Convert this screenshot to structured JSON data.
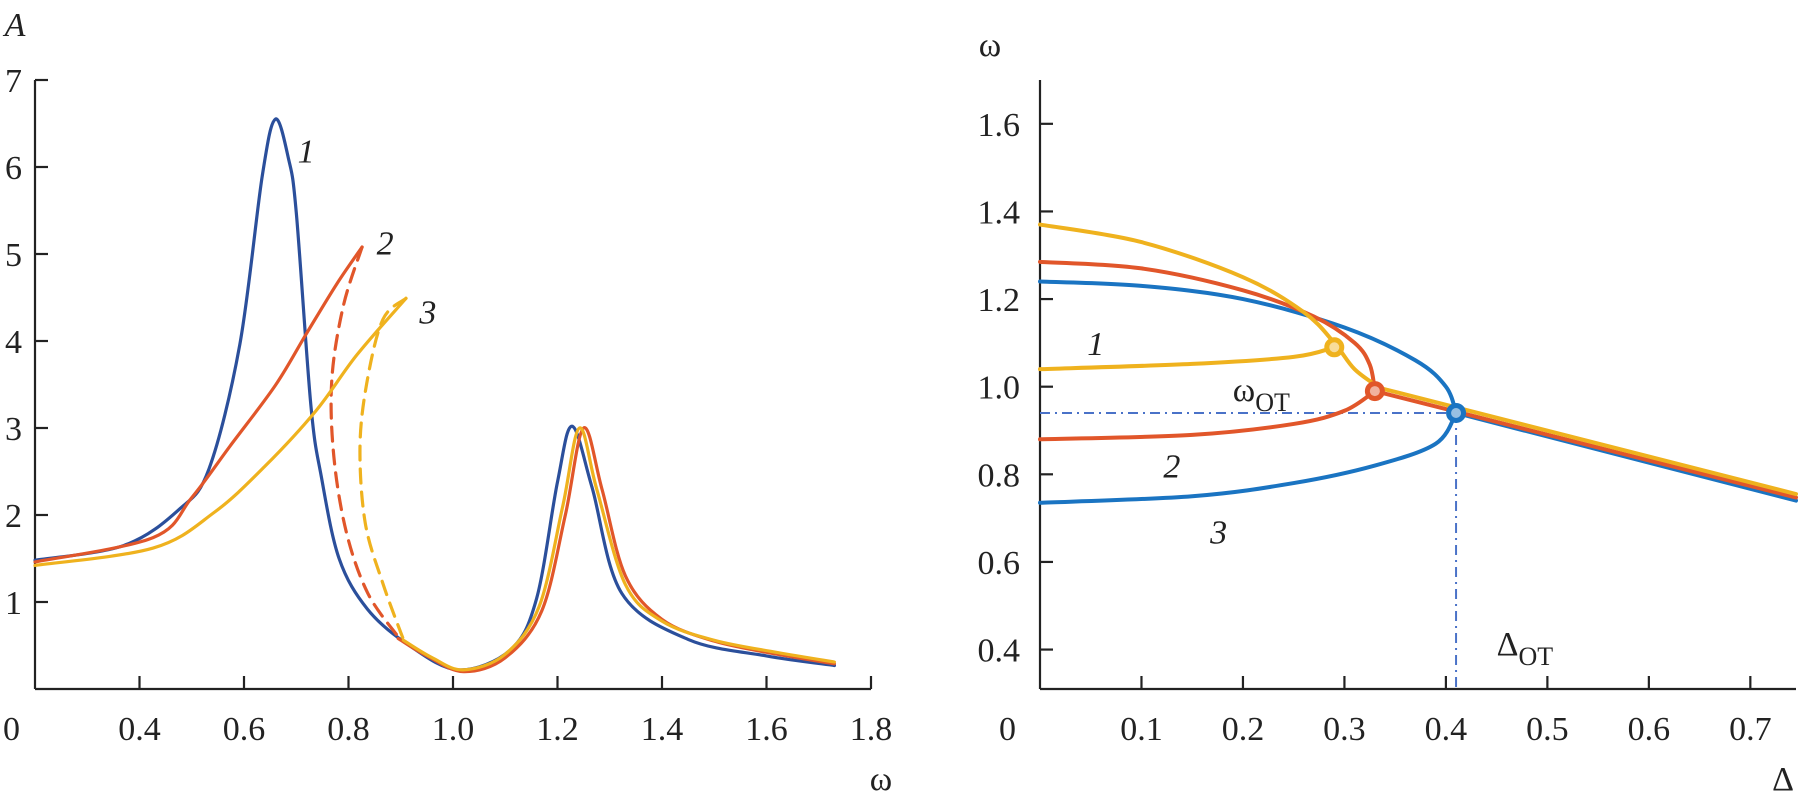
{
  "colors": {
    "blue_left": "#2b4f9b",
    "blue": "#1a74c2",
    "red": "#e1562a",
    "yellow": "#efb21e",
    "guide": "#4a72c8"
  },
  "chart_data": [
    {
      "type": "line",
      "title": "",
      "xlabel": "ω",
      "ylabel": "A",
      "xlim": [
        0.2,
        1.8
      ],
      "ylim": [
        0,
        7
      ],
      "x_origin_label": "0",
      "xticks": [
        0.4,
        0.6,
        0.8,
        1.0,
        1.2,
        1.4,
        1.6,
        1.8
      ],
      "xtick_labels": [
        "0.4",
        "0.6",
        "0.8",
        "1.0",
        "1.2",
        "1.4",
        "1.6",
        "1.8"
      ],
      "yticks": [
        1,
        2,
        3,
        4,
        5,
        6,
        7
      ],
      "ytick_labels": [
        "1",
        "2",
        "3",
        "4",
        "5",
        "6",
        "7"
      ],
      "grid": false,
      "series": [
        {
          "name": "1",
          "color_key": "blue_left",
          "segments": [
            {
              "style": "solid",
              "points": [
                [
                  0.2,
                  1.48
                ],
                [
                  0.37,
                  1.65
                ],
                [
                  0.475,
                  2.06
                ],
                [
                  0.533,
                  2.53
                ],
                [
                  0.592,
                  3.96
                ],
                [
                  0.635,
                  5.9
                ],
                [
                  0.66,
                  6.55
                ],
                [
                  0.685,
                  6.1
                ],
                [
                  0.7,
                  5.48
                ],
                [
                  0.728,
                  3.26
                ],
                [
                  0.748,
                  2.44
                ],
                [
                  0.782,
                  1.5
                ],
                [
                  0.836,
                  0.92
                ],
                [
                  0.914,
                  0.51
                ],
                [
                  1.01,
                  0.22
                ],
                [
                  1.11,
                  0.45
                ],
                [
                  1.16,
                  1.04
                ],
                [
                  1.2,
                  2.38
                ],
                [
                  1.228,
                  3.02
                ],
                [
                  1.266,
                  2.32
                ],
                [
                  1.323,
                  1.1
                ],
                [
                  1.45,
                  0.57
                ],
                [
                  1.6,
                  0.38
                ],
                [
                  1.73,
                  0.27
                ]
              ]
            }
          ],
          "label": {
            "text": "1",
            "at": [
              0.719,
              6.19
            ]
          }
        },
        {
          "name": "2",
          "color_key": "red",
          "segments": [
            {
              "style": "solid",
              "points": [
                [
                  0.2,
                  1.46
                ],
                [
                  0.426,
                  1.74
                ],
                [
                  0.5,
                  2.2
                ],
                [
                  0.573,
                  2.79
                ],
                [
                  0.66,
                  3.49
                ],
                [
                  0.719,
                  4.08
                ],
                [
                  0.778,
                  4.66
                ],
                [
                  0.826,
                  5.08
                ]
              ]
            },
            {
              "style": "dashed",
              "points": [
                [
                  0.826,
                  5.08
                ],
                [
                  0.79,
                  4.4
                ],
                [
                  0.768,
                  3.55
                ],
                [
                  0.772,
                  2.67
                ],
                [
                  0.796,
                  1.8
                ],
                [
                  0.837,
                  1.1
                ],
                [
                  0.895,
                  0.6
                ]
              ]
            },
            {
              "style": "solid",
              "points": [
                [
                  0.895,
                  0.58
                ],
                [
                  0.95,
                  0.38
                ],
                [
                  1.02,
                  0.2
                ],
                [
                  1.1,
                  0.36
                ],
                [
                  1.17,
                  0.9
                ],
                [
                  1.215,
                  2.0
                ],
                [
                  1.25,
                  3.0
                ],
                [
                  1.285,
                  2.3
                ],
                [
                  1.33,
                  1.3
                ],
                [
                  1.4,
                  0.8
                ],
                [
                  1.5,
                  0.55
                ],
                [
                  1.62,
                  0.4
                ],
                [
                  1.73,
                  0.29
                ]
              ]
            }
          ],
          "label": {
            "text": "2",
            "at": [
              0.87,
              5.13
            ]
          }
        },
        {
          "name": "3",
          "color_key": "yellow",
          "segments": [
            {
              "style": "solid",
              "points": [
                [
                  0.2,
                  1.42
                ],
                [
                  0.426,
                  1.62
                ],
                [
                  0.543,
                  2.03
                ],
                [
                  0.64,
                  2.56
                ],
                [
                  0.738,
                  3.2
                ],
                [
                  0.816,
                  3.84
                ],
                [
                  0.91,
                  4.49
                ]
              ]
            },
            {
              "style": "dashed",
              "points": [
                [
                  0.91,
                  4.49
                ],
                [
                  0.866,
                  4.25
                ],
                [
                  0.836,
                  3.55
                ],
                [
                  0.822,
                  2.79
                ],
                [
                  0.832,
                  1.91
                ],
                [
                  0.866,
                  1.21
                ],
                [
                  0.905,
                  0.57
                ]
              ]
            },
            {
              "style": "solid",
              "points": [
                [
                  0.905,
                  0.56
                ],
                [
                  0.96,
                  0.36
                ],
                [
                  1.02,
                  0.22
                ],
                [
                  1.1,
                  0.4
                ],
                [
                  1.165,
                  0.95
                ],
                [
                  1.21,
                  2.1
                ],
                [
                  1.242,
                  3.0
                ],
                [
                  1.275,
                  2.3
                ],
                [
                  1.33,
                  1.2
                ],
                [
                  1.4,
                  0.78
                ],
                [
                  1.5,
                  0.56
                ],
                [
                  1.62,
                  0.42
                ],
                [
                  1.73,
                  0.31
                ]
              ]
            }
          ],
          "label": {
            "text": "3",
            "at": [
              0.952,
              4.34
            ]
          }
        }
      ]
    },
    {
      "type": "line",
      "title": "",
      "xlabel": "Δ",
      "ylabel": "ω",
      "xlim": [
        0,
        0.745
      ],
      "ylim": [
        0.31,
        1.7
      ],
      "x_origin_label": "0",
      "xticks": [
        0.1,
        0.2,
        0.3,
        0.4,
        0.5,
        0.6,
        0.7
      ],
      "xtick_labels": [
        "0.1",
        "0.2",
        "0.3",
        "0.4",
        "0.5",
        "0.6",
        "0.7"
      ],
      "yticks": [
        0.4,
        0.6,
        0.8,
        1.0,
        1.2,
        1.4,
        1.6
      ],
      "ytick_labels": [
        "0.4",
        "0.6",
        "0.8",
        "1.0",
        "1.2",
        "1.4",
        "1.6"
      ],
      "grid": false,
      "series": [
        {
          "name": "3",
          "color_key": "blue",
          "segments": [
            {
              "style": "solid",
              "points": [
                [
                  0,
                  1.24
                ],
                [
                  0.1,
                  1.23
                ],
                [
                  0.2,
                  1.2
                ],
                [
                  0.3,
                  1.135
                ],
                [
                  0.37,
                  1.06
                ],
                [
                  0.4,
                  1.0
                ],
                [
                  0.41,
                  0.94
                ]
              ]
            },
            {
              "style": "solid",
              "points": [
                [
                  0,
                  0.735
                ],
                [
                  0.15,
                  0.75
                ],
                [
                  0.25,
                  0.78
                ],
                [
                  0.33,
                  0.82
                ],
                [
                  0.39,
                  0.87
                ],
                [
                  0.41,
                  0.94
                ]
              ]
            },
            {
              "style": "solid",
              "points": [
                [
                  0.41,
                  0.94
                ],
                [
                  0.745,
                  0.74
                ]
              ]
            }
          ],
          "marker": [
            0.41,
            0.94
          ],
          "label": {
            "text": "3",
            "at": [
              0.176,
              0.67
            ]
          }
        },
        {
          "name": "2",
          "color_key": "red",
          "segments": [
            {
              "style": "solid",
              "points": [
                [
                  0,
                  1.285
                ],
                [
                  0.1,
                  1.27
                ],
                [
                  0.2,
                  1.22
                ],
                [
                  0.27,
                  1.16
                ],
                [
                  0.31,
                  1.1
                ],
                [
                  0.325,
                  1.05
                ],
                [
                  0.33,
                  0.99
                ]
              ]
            },
            {
              "style": "solid",
              "points": [
                [
                  0,
                  0.88
                ],
                [
                  0.15,
                  0.89
                ],
                [
                  0.25,
                  0.915
                ],
                [
                  0.3,
                  0.945
                ],
                [
                  0.33,
                  0.99
                ]
              ]
            },
            {
              "style": "solid",
              "points": [
                [
                  0.33,
                  0.99
                ],
                [
                  0.745,
                  0.747
                ]
              ]
            }
          ],
          "marker": [
            0.33,
            0.99
          ],
          "label": {
            "text": "2",
            "at": [
              0.13,
              0.82
            ]
          }
        },
        {
          "name": "1",
          "color_key": "yellow",
          "segments": [
            {
              "style": "solid",
              "points": [
                [
                  0,
                  1.37
                ],
                [
                  0.1,
                  1.33
                ],
                [
                  0.2,
                  1.25
                ],
                [
                  0.26,
                  1.17
                ],
                [
                  0.29,
                  1.1
                ],
                [
                  0.31,
                  1.04
                ],
                [
                  0.335,
                  0.997
                ]
              ]
            },
            {
              "style": "solid",
              "points": [
                [
                  0,
                  1.04
                ],
                [
                  0.15,
                  1.052
                ],
                [
                  0.25,
                  1.068
                ],
                [
                  0.29,
                  1.09
                ]
              ]
            },
            {
              "style": "solid",
              "points": [
                [
                  0.335,
                  0.997
                ],
                [
                  0.745,
                  0.755
                ]
              ]
            }
          ],
          "marker": [
            0.29,
            1.09
          ],
          "label": {
            "text": "1",
            "at": [
              0.055,
              1.1
            ]
          }
        }
      ],
      "guides": {
        "omega_ot": 0.94,
        "delta_ot": 0.41
      },
      "annotations": [
        {
          "base": "ω",
          "sub": "OT",
          "at": [
            0.19,
            0.99
          ]
        },
        {
          "base": "Δ",
          "sub": "OT",
          "at": [
            0.45,
            0.41
          ]
        }
      ]
    }
  ]
}
